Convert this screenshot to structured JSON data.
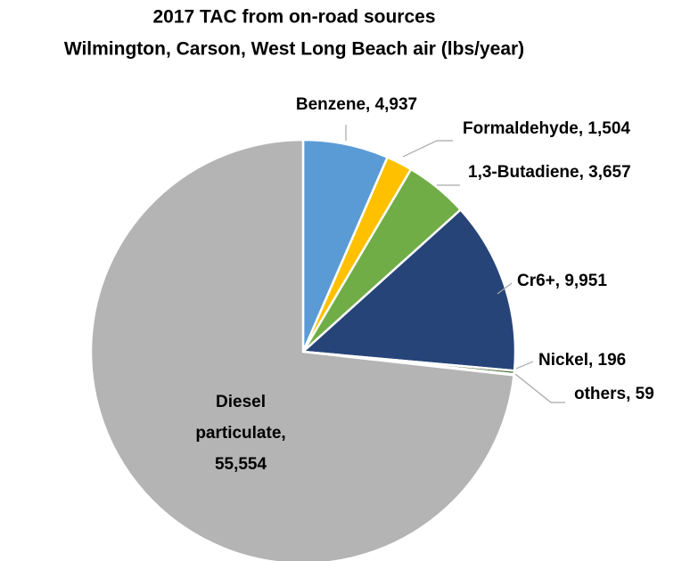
{
  "chart_data": {
    "type": "pie",
    "title": "2017 TAC from on-road sources",
    "subtitle": "Wilmington, Carson, West Long Beach air (lbs/year)",
    "values": [
      4937,
      1504,
      3657,
      9951,
      196,
      59,
      55554
    ],
    "value_labels": [
      "Benzene, 4,937",
      "Formaldehyde, 1,504",
      "1,3-Butadiene, 3,657",
      "Cr6+, 9,951",
      "Nickel, 196",
      "others, 59",
      [
        "Diesel",
        "particulate,",
        "55,554"
      ]
    ],
    "colors": [
      "#5b9bd5",
      "#ffc000",
      "#70ad47",
      "#264478",
      "#43682b",
      "#636363",
      "#b4b4b4"
    ]
  }
}
